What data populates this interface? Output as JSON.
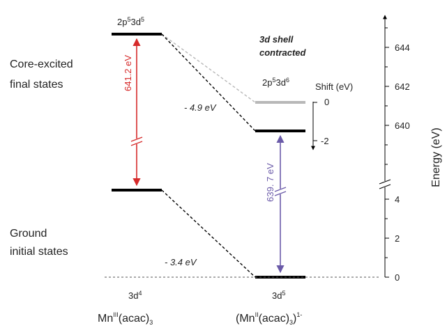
{
  "left_labels": {
    "core_line1": "Core-excited",
    "core_line2": "final states",
    "ground_line1": "Ground",
    "ground_line2": "initial states"
  },
  "config_left_top": {
    "base1": "2p",
    "sup1": "5",
    "base2": "3d",
    "sup2": "5"
  },
  "config_right_top": {
    "base1": "2p",
    "sup1": "5",
    "base2": "3d",
    "sup2": "6"
  },
  "config_left_bottom": {
    "base": "3d",
    "sup": "4"
  },
  "config_right_bottom": {
    "base": "3d",
    "sup": "5"
  },
  "contracted_line1": "3d shell",
  "contracted_line2": "contracted",
  "shift_title": "Shift (eV)",
  "shift_ticks": [
    "0",
    "-2"
  ],
  "delta_top": "- 4.9 eV",
  "delta_bottom": "- 3.4 eV",
  "transition_left": "641.2 eV",
  "transition_right": "639. 7 eV",
  "energy_axis_title": "Energy (eV)",
  "energy_ticks_upper": [
    "644",
    "642",
    "640"
  ],
  "energy_ticks_lower": [
    "4",
    "2",
    "0"
  ],
  "compound_left": {
    "pre": "Mn",
    "sup": "III",
    "mid": "(acac)",
    "sub": "3",
    "post": ""
  },
  "compound_right": {
    "pre": "(Mn",
    "sup": "II",
    "mid": "(acac)",
    "sub": "3",
    "post": ")",
    "sup2": "1-"
  },
  "colors": {
    "left_arrow": "#d62a2a",
    "right_arrow": "#6a5aa8",
    "shifted_level": "#b8b8b8",
    "levels": "#000000"
  }
}
